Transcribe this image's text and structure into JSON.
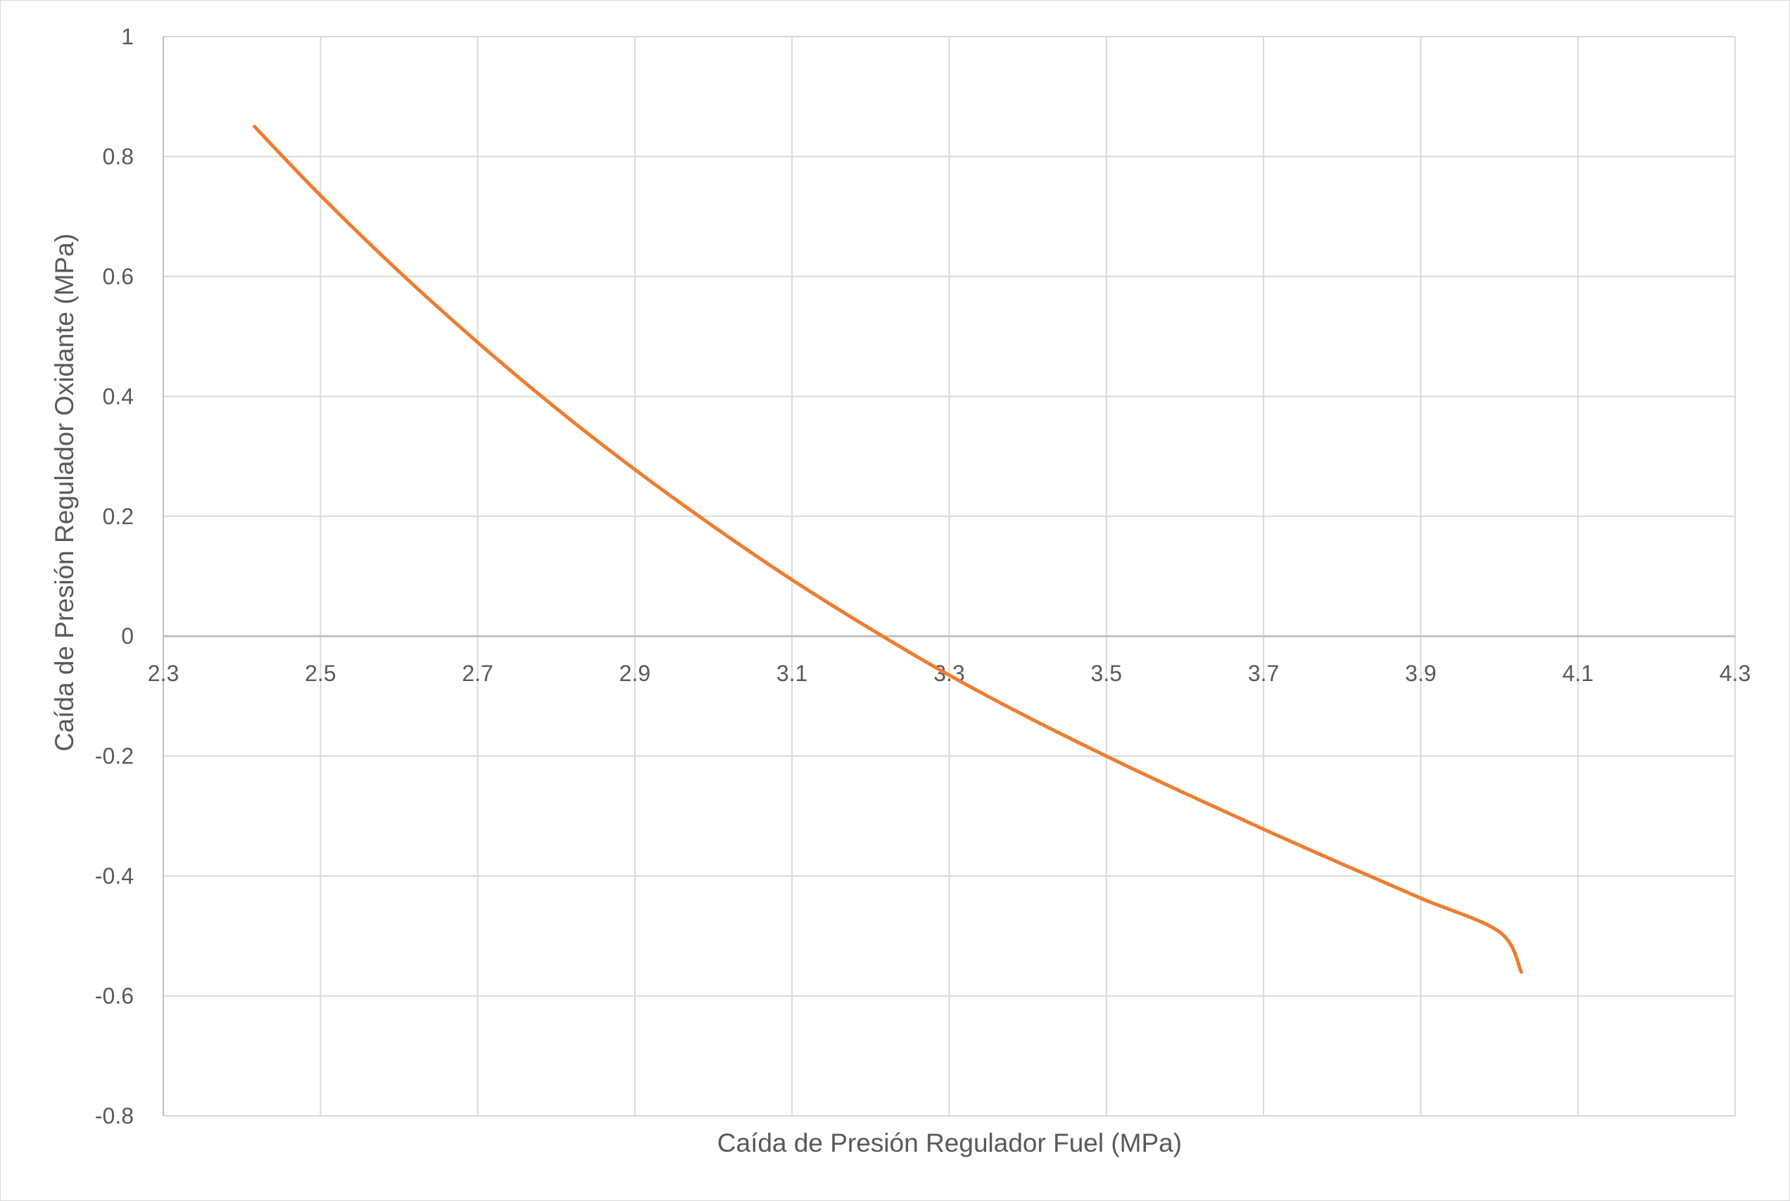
{
  "chart_data": {
    "type": "scatter",
    "title": "",
    "xlabel": "Caída de Presión Regulador Fuel (MPa)",
    "ylabel": "Caída de Presión Regulador Oxidante (MPa)",
    "xlim": [
      2.3,
      4.3
    ],
    "ylim": [
      -0.8,
      1.0
    ],
    "x_ticks": [
      "2.3",
      "2.5",
      "2.7",
      "2.9",
      "3.1",
      "3.3",
      "3.5",
      "3.7",
      "3.9",
      "4.1",
      "4.3"
    ],
    "y_ticks": [
      "1",
      "0.8",
      "0.6",
      "0.4",
      "0.2",
      "0",
      "-0.2",
      "-0.4",
      "-0.6",
      "-0.8"
    ],
    "grid": true,
    "legend": "none",
    "series": [
      {
        "color": "#ED7D31",
        "style": "smooth-line",
        "x": [
          2.416,
          2.5,
          2.6,
          2.7,
          2.8,
          2.9,
          3.0,
          3.1,
          3.2,
          3.3,
          3.4,
          3.5,
          3.6,
          3.7,
          3.8,
          3.9,
          4.0,
          4.028
        ],
        "y": [
          0.85,
          0.735,
          0.608,
          0.49,
          0.38,
          0.278,
          0.183,
          0.094,
          0.012,
          -0.065,
          -0.135,
          -0.2,
          -0.262,
          -0.322,
          -0.38,
          -0.437,
          -0.493,
          -0.56
        ]
      }
    ]
  }
}
